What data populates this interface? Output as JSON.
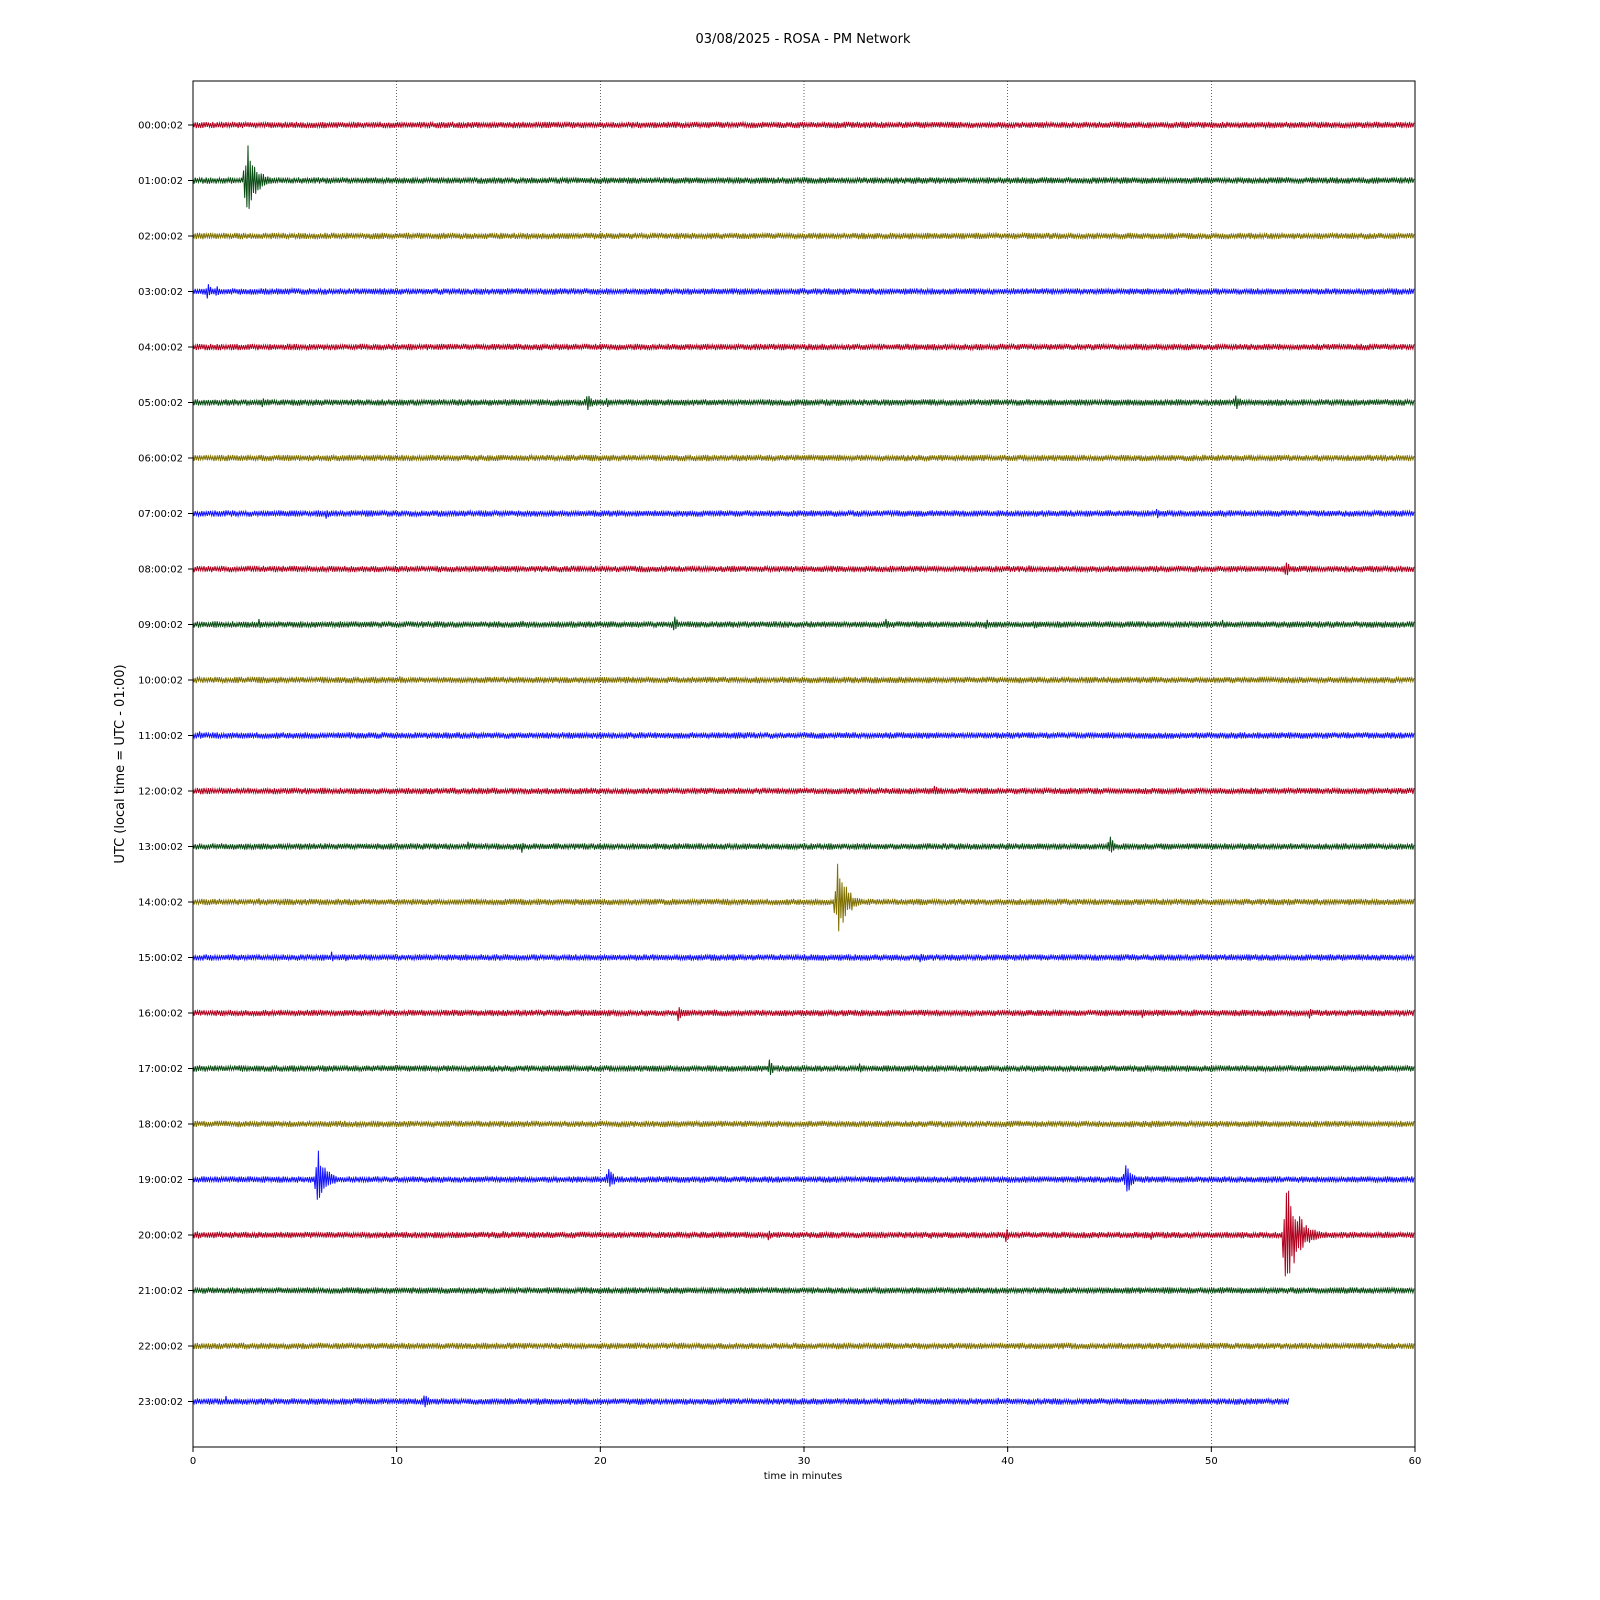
{
  "chart_data": {
    "type": "line",
    "title": "03/08/2025 - ROSA - PM Network",
    "xlabel": "time in minutes",
    "ylabel": "UTC (local time = UTC - 01:00)",
    "xlim": [
      0,
      60
    ],
    "xticks": [
      "0",
      "10",
      "20",
      "30",
      "40",
      "50",
      "60"
    ],
    "grid": "vertical dotted lines at x ticks",
    "trace_colors": [
      "#b0001e",
      "#0a4d14",
      "#7f7000",
      "#1010ff"
    ],
    "rows": [
      {
        "label": "00:00:02",
        "end": 60,
        "events": []
      },
      {
        "label": "01:00:02",
        "end": 60,
        "events": [
          {
            "t": 2.6,
            "amp": 45
          }
        ]
      },
      {
        "label": "02:00:02",
        "end": 60,
        "events": []
      },
      {
        "label": "03:00:02",
        "end": 60,
        "events": [
          {
            "t": 0.7,
            "amp": 10
          },
          {
            "t": 1.1,
            "amp": 8
          }
        ]
      },
      {
        "label": "04:00:02",
        "end": 60,
        "events": []
      },
      {
        "label": "05:00:02",
        "end": 60,
        "events": [
          {
            "t": 3.4,
            "amp": 7
          },
          {
            "t": 19.3,
            "amp": 13
          },
          {
            "t": 20.3,
            "amp": 6
          },
          {
            "t": 51.2,
            "amp": 10
          }
        ]
      },
      {
        "label": "06:00:02",
        "end": 60,
        "events": []
      },
      {
        "label": "07:00:02",
        "end": 60,
        "events": [
          {
            "t": 6.5,
            "amp": 7
          },
          {
            "t": 47.3,
            "amp": 7
          }
        ]
      },
      {
        "label": "08:00:02",
        "end": 60,
        "events": [
          {
            "t": 23.5,
            "amp": 4
          },
          {
            "t": 41.0,
            "amp": 5
          },
          {
            "t": 53.6,
            "amp": 11
          }
        ]
      },
      {
        "label": "09:00:02",
        "end": 60,
        "events": [
          {
            "t": 3.2,
            "amp": 7
          },
          {
            "t": 16.2,
            "amp": 5
          },
          {
            "t": 23.6,
            "amp": 10
          },
          {
            "t": 34.0,
            "amp": 7
          },
          {
            "t": 38.9,
            "amp": 8
          },
          {
            "t": 41.3,
            "amp": 6
          },
          {
            "t": 50.5,
            "amp": 6
          }
        ]
      },
      {
        "label": "10:00:02",
        "end": 60,
        "events": [
          {
            "t": 10.1,
            "amp": 5
          },
          {
            "t": 51.0,
            "amp": 4
          }
        ]
      },
      {
        "label": "11:00:02",
        "end": 60,
        "events": [
          {
            "t": 0.3,
            "amp": 6
          },
          {
            "t": 12.0,
            "amp": 4
          }
        ]
      },
      {
        "label": "12:00:02",
        "end": 60,
        "events": [
          {
            "t": 14.0,
            "amp": 5
          },
          {
            "t": 26.6,
            "amp": 4
          },
          {
            "t": 36.4,
            "amp": 7
          },
          {
            "t": 47.6,
            "amp": 5
          }
        ]
      },
      {
        "label": "13:00:02",
        "end": 60,
        "events": [
          {
            "t": 13.5,
            "amp": 6
          },
          {
            "t": 16.1,
            "amp": 8
          },
          {
            "t": 45.0,
            "amp": 12
          },
          {
            "t": 51.5,
            "amp": 5
          }
        ]
      },
      {
        "label": "14:00:02",
        "end": 60,
        "events": [
          {
            "t": 3.2,
            "amp": 6
          },
          {
            "t": 31.6,
            "amp": 45
          }
        ]
      },
      {
        "label": "15:00:02",
        "end": 60,
        "events": [
          {
            "t": 6.8,
            "amp": 7
          },
          {
            "t": 7.5,
            "amp": 6
          },
          {
            "t": 35.7,
            "amp": 5
          }
        ]
      },
      {
        "label": "16:00:02",
        "end": 60,
        "events": [
          {
            "t": 23.8,
            "amp": 9
          },
          {
            "t": 25.5,
            "amp": 6
          },
          {
            "t": 46.6,
            "amp": 6
          },
          {
            "t": 49.1,
            "amp": 6
          },
          {
            "t": 54.8,
            "amp": 6
          },
          {
            "t": 59.2,
            "amp": 5
          }
        ]
      },
      {
        "label": "17:00:02",
        "end": 60,
        "events": [
          {
            "t": 28.3,
            "amp": 9
          },
          {
            "t": 32.7,
            "amp": 6
          },
          {
            "t": 43.5,
            "amp": 5
          },
          {
            "t": 48.0,
            "amp": 4
          }
        ]
      },
      {
        "label": "18:00:02",
        "end": 60,
        "events": [
          {
            "t": 47.0,
            "amp": 5
          }
        ]
      },
      {
        "label": "19:00:02",
        "end": 60,
        "events": [
          {
            "t": 6.1,
            "amp": 36
          },
          {
            "t": 20.4,
            "amp": 15
          },
          {
            "t": 45.8,
            "amp": 19
          },
          {
            "t": 58.5,
            "amp": 6
          }
        ]
      },
      {
        "label": "20:00:02",
        "end": 60,
        "events": [
          {
            "t": 0.2,
            "amp": 5
          },
          {
            "t": 15.2,
            "amp": 5
          },
          {
            "t": 28.2,
            "amp": 8
          },
          {
            "t": 36.2,
            "amp": 5
          },
          {
            "t": 39.9,
            "amp": 8
          },
          {
            "t": 47.0,
            "amp": 6
          },
          {
            "t": 53.6,
            "amp": 68
          }
        ]
      },
      {
        "label": "21:00:02",
        "end": 60,
        "events": [
          {
            "t": 5.1,
            "amp": 4
          },
          {
            "t": 12.9,
            "amp": 4
          },
          {
            "t": 14.7,
            "amp": 4
          }
        ]
      },
      {
        "label": "22:00:02",
        "end": 60,
        "events": [
          {
            "t": 57.2,
            "amp": 5
          }
        ]
      },
      {
        "label": "23:00:02",
        "end": 53.8,
        "events": [
          {
            "t": 1.6,
            "amp": 7
          },
          {
            "t": 11.3,
            "amp": 11
          },
          {
            "t": 39.5,
            "amp": 5
          }
        ]
      }
    ]
  }
}
